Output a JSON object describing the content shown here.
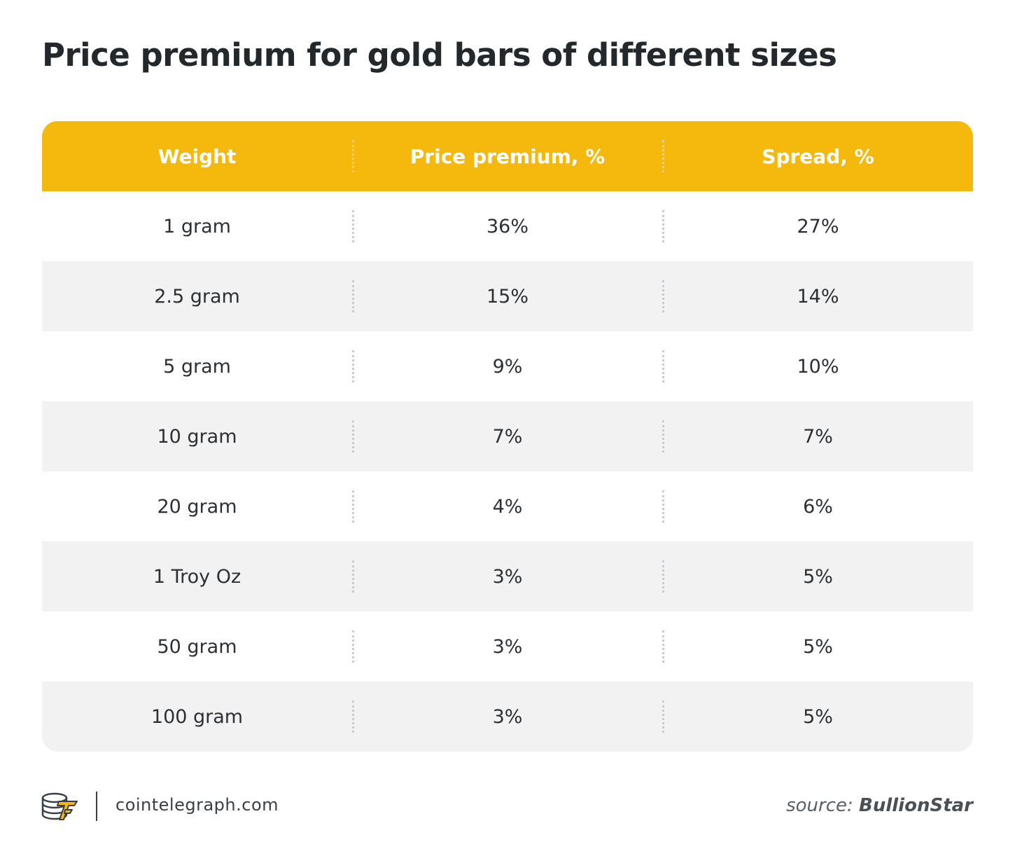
{
  "title": "Price premium for gold bars of different sizes",
  "chart_data": {
    "type": "table",
    "title": "Price premium for gold bars of different sizes",
    "columns": [
      "Weight",
      "Price premium, %",
      "Spread, %"
    ],
    "rows": [
      [
        "1 gram",
        "36%",
        "27%"
      ],
      [
        "2.5 gram",
        "15%",
        "14%"
      ],
      [
        "5 gram",
        "9%",
        "10%"
      ],
      [
        "10 gram",
        "7%",
        "7%"
      ],
      [
        "20 gram",
        "4%",
        "6%"
      ],
      [
        "1 Troy Oz",
        "3%",
        "5%"
      ],
      [
        "50 gram",
        "3%",
        "5%"
      ],
      [
        "100 gram",
        "3%",
        "5%"
      ]
    ]
  },
  "footer": {
    "site": "cointelegraph.com",
    "source_label": "source:",
    "source_name": "BullionStar",
    "logo_icon": "cointelegraph-logo-icon"
  },
  "colors": {
    "header_bg": "#f4b90c",
    "row_alt_bg": "#f2f2f2",
    "text": "#2c3034"
  }
}
